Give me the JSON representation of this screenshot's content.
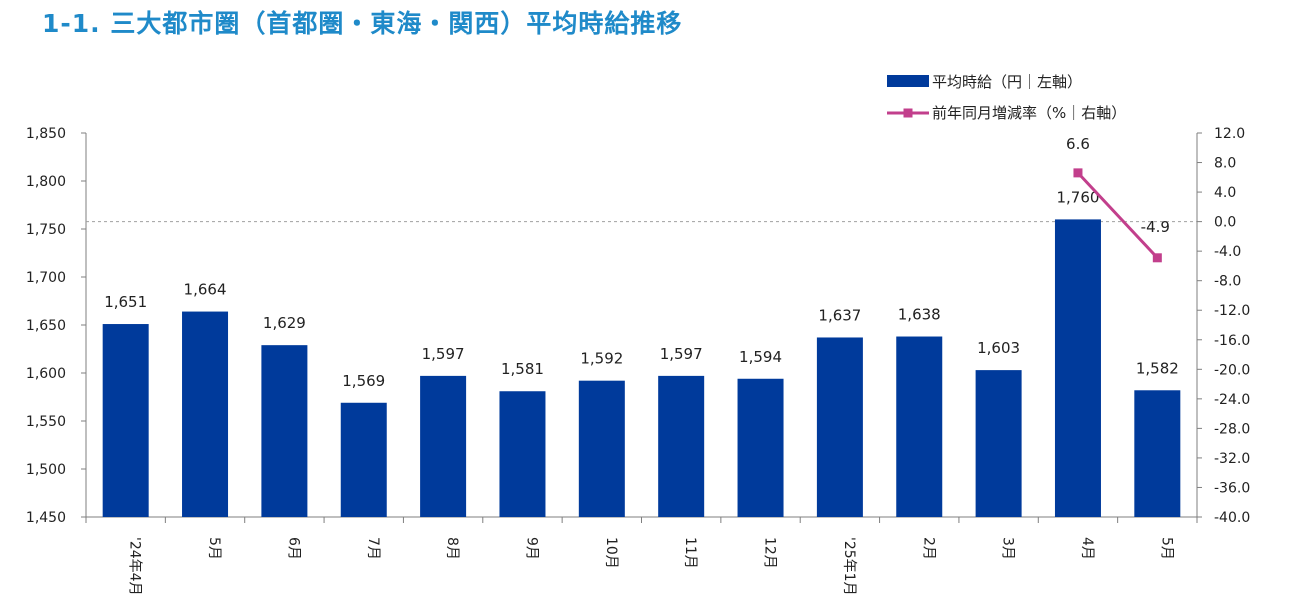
{
  "page": {
    "title": "1-1. 三大都市圏（首都圏・東海・関西）平均時給推移"
  },
  "legend": {
    "bar_label": "平均時給（円｜左軸）",
    "line_label": "前年同月増減率（%｜右軸）"
  },
  "colors": {
    "title": "#1f8ac9",
    "bar": "#003a9b",
    "line": "#c23f8c",
    "zero_line": "#a0a0a0",
    "axis": "#7f7f7f"
  },
  "chart_data": {
    "type": "bar",
    "categories": [
      "'24年4月",
      "5月",
      "6月",
      "7月",
      "8月",
      "9月",
      "10月",
      "11月",
      "12月",
      "'25年1月",
      "2月",
      "3月",
      "4月",
      "5月"
    ],
    "series": [
      {
        "name": "平均時給（円｜左軸）",
        "type": "bar",
        "axis": "left",
        "values": [
          1651,
          1664,
          1629,
          1569,
          1597,
          1581,
          1592,
          1597,
          1594,
          1637,
          1638,
          1603,
          1760,
          1582
        ],
        "data_labels": [
          "1,651",
          "1,664",
          "1,629",
          "1,569",
          "1,597",
          "1,581",
          "1,592",
          "1,597",
          "1,594",
          "1,637",
          "1,638",
          "1,603",
          "1,760",
          "1,582"
        ]
      },
      {
        "name": "前年同月増減率（%｜右軸）",
        "type": "line",
        "axis": "right",
        "points": [
          {
            "category_index": 12,
            "value": 6.6,
            "label": "6.6"
          },
          {
            "category_index": 13,
            "value": -4.9,
            "label": "-4.9"
          }
        ]
      }
    ],
    "y_left": {
      "ylim": [
        1450,
        1850
      ],
      "ticks": [
        "1,450",
        "1,500",
        "1,550",
        "1,600",
        "1,650",
        "1,700",
        "1,750",
        "1,800",
        "1,850"
      ]
    },
    "y_right": {
      "ylim": [
        -40,
        12
      ],
      "ticks": [
        "12.0",
        "8.0",
        "4.0",
        "0.0",
        "-4.0",
        "-8.0",
        "-12.0",
        "-16.0",
        "-20.0",
        "-24.0",
        "-28.0",
        "-32.0",
        "-36.0",
        "-40.0"
      ],
      "reference_line": 0
    },
    "grid": false,
    "legend_position": "top-right"
  }
}
